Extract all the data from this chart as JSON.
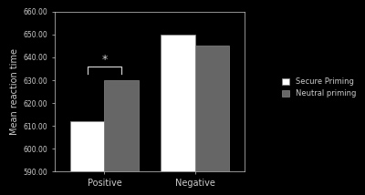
{
  "categories": [
    "Positive",
    "Negative"
  ],
  "secure_priming": [
    612,
    650
  ],
  "neutral_priming": [
    630,
    645
  ],
  "secure_color": "#ffffff",
  "neutral_color": "#666666",
  "bar_edge_color": "#888888",
  "background_color": "#000000",
  "text_color": "#cccccc",
  "ylabel": "Mean reaction time",
  "ylim": [
    590,
    660
  ],
  "yticks": [
    590.0,
    600.0,
    610.0,
    620.0,
    630.0,
    640.0,
    650.0,
    660.0
  ],
  "legend_labels": [
    "Secure Priming",
    "Neutral priming"
  ],
  "bar_width": 0.38
}
